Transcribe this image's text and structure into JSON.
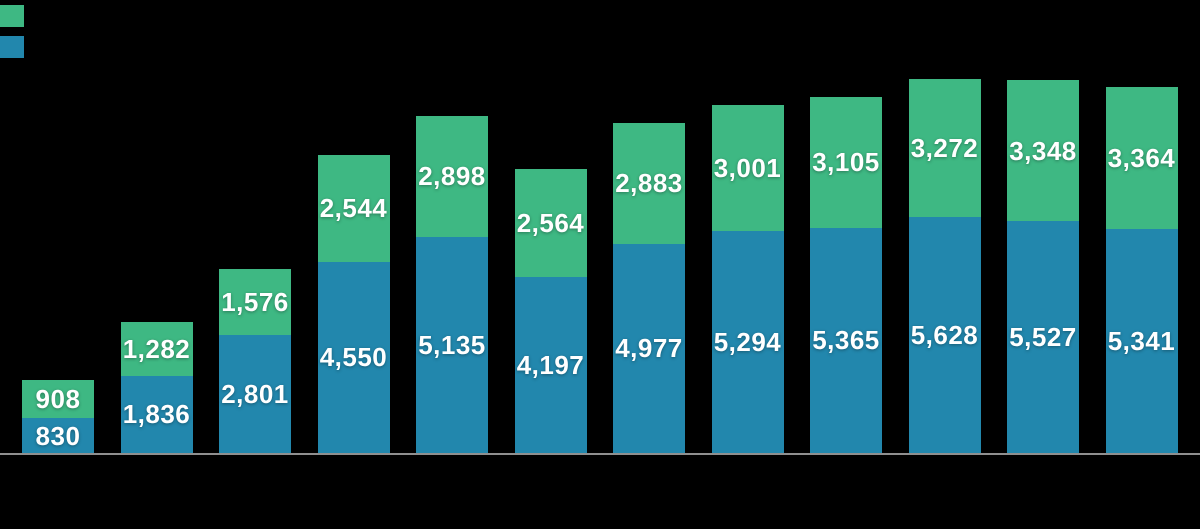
{
  "chart_data": {
    "type": "bar",
    "stacked": true,
    "title": "",
    "xlabel": "",
    "ylabel": "",
    "grid": false,
    "x_axis_labels_visible": false,
    "y_axis_ticks_visible": false,
    "background_color": "#000000",
    "axis_line_color": "#8f8f8f",
    "value_label_color": "#ffffff",
    "ylim": [
      0,
      10800
    ],
    "categories": [
      "",
      "",
      "",
      "",
      "",
      "",
      "",
      "",
      "",
      "",
      "",
      ""
    ],
    "series": [
      {
        "name": "",
        "role": "top",
        "color": "#3eb883",
        "values": [
          908,
          1282,
          1576,
          2544,
          2898,
          2564,
          2883,
          3001,
          3105,
          3272,
          3348,
          3364
        ],
        "labels": [
          "908",
          "1,282",
          "1,576",
          "2,544",
          "2,898",
          "2,564",
          "2,883",
          "3,001",
          "3,105",
          "3,272",
          "3,348",
          "3,364"
        ]
      },
      {
        "name": "",
        "role": "bottom",
        "color": "#2287ad",
        "values": [
          830,
          1836,
          2801,
          4550,
          5135,
          4197,
          4977,
          5294,
          5365,
          5628,
          5527,
          5341
        ],
        "labels": [
          "830",
          "1,836",
          "2,801",
          "4,550",
          "5,135",
          "4,197",
          "4,977",
          "5,294",
          "5,365",
          "5,628",
          "5,527",
          "5,341"
        ]
      }
    ],
    "legend": {
      "position": "top-left",
      "entries": [
        {
          "label": "",
          "color": "#3eb883"
        },
        {
          "label": "",
          "color": "#2287ad"
        }
      ]
    }
  }
}
